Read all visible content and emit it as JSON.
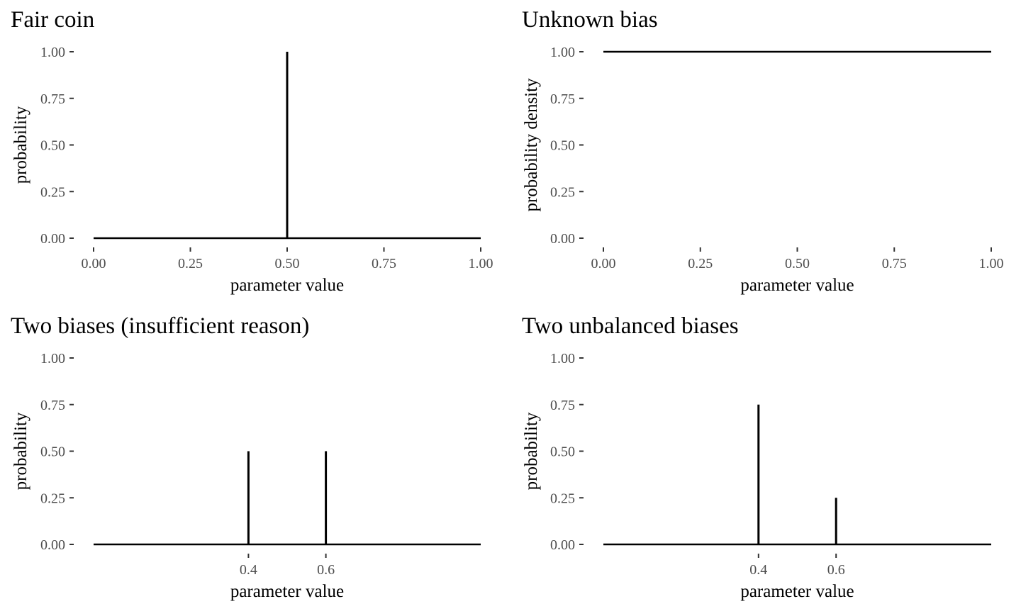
{
  "chart_data": [
    {
      "type": "line",
      "title": "Fair coin",
      "xlabel": "parameter value",
      "ylabel": "probability",
      "xlim": [
        0,
        1
      ],
      "ylim": [
        0,
        1
      ],
      "x_ticks": [
        0,
        0.25,
        0.5,
        0.75,
        1
      ],
      "x_tick_labels": [
        "0.00",
        "0.25",
        "0.50",
        "0.75",
        "1.00"
      ],
      "y_ticks": [
        0,
        0.25,
        0.5,
        0.75,
        1
      ],
      "y_tick_labels": [
        "0.00",
        "0.25",
        "0.50",
        "0.75",
        "1.00"
      ],
      "baseline": true,
      "spikes": [
        {
          "x": 0.5,
          "y": 1.0
        }
      ],
      "grid": false
    },
    {
      "type": "line",
      "title": "Unknown bias",
      "xlabel": "parameter value",
      "ylabel": "probability density",
      "xlim": [
        0,
        1
      ],
      "ylim": [
        0,
        1
      ],
      "x_ticks": [
        0,
        0.25,
        0.5,
        0.75,
        1
      ],
      "x_tick_labels": [
        "0.00",
        "0.25",
        "0.50",
        "0.75",
        "1.00"
      ],
      "y_ticks": [
        0,
        0.25,
        0.5,
        0.75,
        1
      ],
      "y_tick_labels": [
        "0.00",
        "0.25",
        "0.50",
        "0.75",
        "1.00"
      ],
      "baseline": false,
      "lines": [
        {
          "x": [
            0,
            1
          ],
          "y": [
            1,
            1
          ]
        }
      ],
      "grid": false
    },
    {
      "type": "line",
      "title": "Two biases (insufficient reason)",
      "xlabel": "parameter value",
      "ylabel": "probability",
      "xlim": [
        0,
        1
      ],
      "ylim": [
        0,
        1
      ],
      "x_ticks": [
        0.4,
        0.6
      ],
      "x_tick_labels": [
        "0.4",
        "0.6"
      ],
      "y_ticks": [
        0,
        0.25,
        0.5,
        0.75,
        1
      ],
      "y_tick_labels": [
        "0.00",
        "0.25",
        "0.50",
        "0.75",
        "1.00"
      ],
      "baseline": true,
      "spikes": [
        {
          "x": 0.4,
          "y": 0.5
        },
        {
          "x": 0.6,
          "y": 0.5
        }
      ],
      "grid": false
    },
    {
      "type": "line",
      "title": "Two unbalanced biases",
      "xlabel": "parameter value",
      "ylabel": "probability",
      "xlim": [
        0,
        1
      ],
      "ylim": [
        0,
        1
      ],
      "x_ticks": [
        0.4,
        0.6
      ],
      "x_tick_labels": [
        "0.4",
        "0.6"
      ],
      "y_ticks": [
        0,
        0.25,
        0.5,
        0.75,
        1
      ],
      "y_tick_labels": [
        "0.00",
        "0.25",
        "0.50",
        "0.75",
        "1.00"
      ],
      "baseline": true,
      "spikes": [
        {
          "x": 0.4,
          "y": 0.75
        },
        {
          "x": 0.6,
          "y": 0.25
        }
      ],
      "grid": false
    }
  ]
}
